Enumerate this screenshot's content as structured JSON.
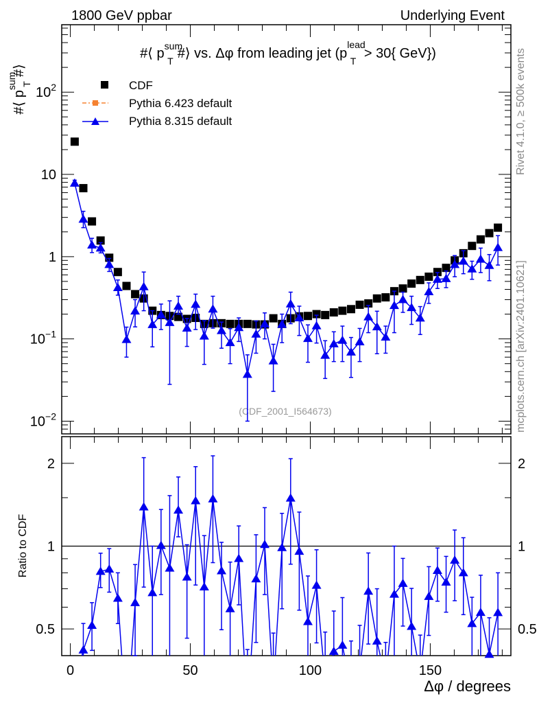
{
  "header": {
    "left": "1800 GeV ppbar",
    "right": "Underlying Event"
  },
  "side_texts": {
    "rivet": "Rivet 4.1.0, ≥ 500k events",
    "mcplots": "mcplots.cern.ch [arXiv:2401.10621]"
  },
  "watermark": "(CDF_2001_I564673)",
  "chart_data": {
    "type": "scatter",
    "title_parts": [
      "#⟨ p",
      "sum",
      "T",
      "#⟩ vs. Δφ from leading jet  (p",
      "lead",
      "T",
      " > 30{ GeV})"
    ],
    "ylabel_parts": [
      "#⟨ p",
      "sum",
      "T",
      "#⟩"
    ],
    "xlabel": "Δφ / degrees",
    "ratio_ylabel": "Ratio to CDF",
    "xlim": [
      -3.6,
      183.6
    ],
    "ylim": [
      0.007,
      660
    ],
    "yscale": "log",
    "ratio_ylim": [
      0.4,
      2.5
    ],
    "ratio_yscale": "log",
    "x_ticks": [
      "0",
      "50",
      "100",
      "150"
    ],
    "x_tick_values": [
      0,
      50,
      100,
      150
    ],
    "y_ticks": [
      {
        "value": 100,
        "base": "10",
        "exp": "2"
      },
      {
        "value": 10,
        "base": "10",
        "exp": ""
      },
      {
        "value": 1,
        "base": "1",
        "exp": ""
      },
      {
        "value": 0.1,
        "base": "10",
        "exp": "−1"
      },
      {
        "value": 0.01,
        "base": "10",
        "exp": "−2"
      }
    ],
    "ratio_ticks": [
      {
        "value": 2,
        "label": "2"
      },
      {
        "value": 1,
        "label": "1"
      },
      {
        "value": 0.5,
        "label": "0.5"
      }
    ],
    "x": [
      1.8,
      5.4,
      9,
      12.6,
      16.2,
      19.8,
      23.4,
      27,
      30.6,
      34.2,
      37.8,
      41.4,
      45,
      48.6,
      52.2,
      55.8,
      59.4,
      63,
      66.6,
      70.2,
      73.8,
      77.4,
      81,
      84.6,
      88.2,
      91.8,
      95.4,
      99,
      102.6,
      106.2,
      109.8,
      113.4,
      117,
      120.6,
      124.2,
      127.8,
      131.4,
      135,
      138.6,
      142.2,
      145.8,
      149.4,
      153,
      156.6,
      160.2,
      163.8,
      167.4,
      171,
      174.6,
      178.2
    ],
    "legend": [
      {
        "name": "CDF",
        "color": "#000000",
        "marker": "square"
      },
      {
        "name": "Pythia 6.423 default",
        "color": "#f58231",
        "marker": "square-dashdot"
      },
      {
        "name": "Pythia 8.315 default",
        "color": "#0000ee",
        "marker": "triangle"
      }
    ],
    "series": [
      {
        "name": "CDF",
        "values": [
          25.0,
          6.8,
          2.68,
          1.57,
          0.97,
          0.65,
          0.44,
          0.35,
          0.31,
          0.22,
          0.195,
          0.19,
          0.185,
          0.175,
          0.18,
          0.152,
          0.155,
          0.155,
          0.152,
          0.152,
          0.152,
          0.15,
          0.15,
          0.178,
          0.152,
          0.178,
          0.188,
          0.19,
          0.2,
          0.195,
          0.21,
          0.22,
          0.23,
          0.26,
          0.27,
          0.31,
          0.32,
          0.38,
          0.41,
          0.47,
          0.52,
          0.57,
          0.65,
          0.73,
          0.9,
          1.1,
          1.35,
          1.62,
          1.93,
          2.25
        ]
      },
      {
        "name": "Pythia 6.423 default",
        "values": []
      },
      {
        "name": "Pythia 8.315 default",
        "values": [
          7.8,
          2.85,
          1.38,
          1.27,
          0.8,
          0.42,
          0.098,
          0.218,
          0.43,
          0.149,
          0.196,
          0.158,
          0.25,
          0.135,
          0.263,
          0.108,
          0.23,
          0.126,
          0.09,
          0.137,
          0.037,
          0.114,
          0.152,
          0.054,
          0.15,
          0.266,
          0.18,
          0.101,
          0.144,
          0.063,
          0.087,
          0.096,
          0.069,
          0.092,
          0.185,
          0.14,
          0.105,
          0.254,
          0.3,
          0.24,
          0.179,
          0.374,
          0.53,
          0.54,
          0.8,
          0.88,
          0.706,
          0.93,
          0.78,
          1.29
        ],
        "upper": [
          8.5,
          3.56,
          1.67,
          1.48,
          0.95,
          0.52,
          0.139,
          0.3,
          0.65,
          0.22,
          0.265,
          0.29,
          0.33,
          0.177,
          0.35,
          0.166,
          0.33,
          0.16,
          0.133,
          0.18,
          0.064,
          0.165,
          0.207,
          0.086,
          0.2,
          0.37,
          0.25,
          0.148,
          0.194,
          0.095,
          0.122,
          0.143,
          0.104,
          0.134,
          0.255,
          0.217,
          0.143,
          0.38,
          0.37,
          0.33,
          0.247,
          0.48,
          0.64,
          0.67,
          1.03,
          1.18,
          0.88,
          1.27,
          1.06,
          1.8
        ],
        "lower": [
          7.2,
          2.25,
          1.12,
          1.11,
          0.66,
          0.34,
          0.06,
          0.14,
          0.22,
          0.08,
          0.13,
          0.028,
          0.2,
          0.081,
          0.13,
          0.049,
          0.135,
          0.077,
          0.05,
          0.093,
          0.01,
          0.067,
          0.1,
          0.023,
          0.09,
          0.153,
          0.11,
          0.052,
          0.089,
          0.033,
          0.053,
          0.053,
          0.034,
          0.053,
          0.119,
          0.066,
          0.067,
          0.119,
          0.21,
          0.15,
          0.113,
          0.27,
          0.41,
          0.42,
          0.57,
          0.62,
          0.53,
          0.64,
          0.51,
          0.79
        ]
      }
    ]
  }
}
